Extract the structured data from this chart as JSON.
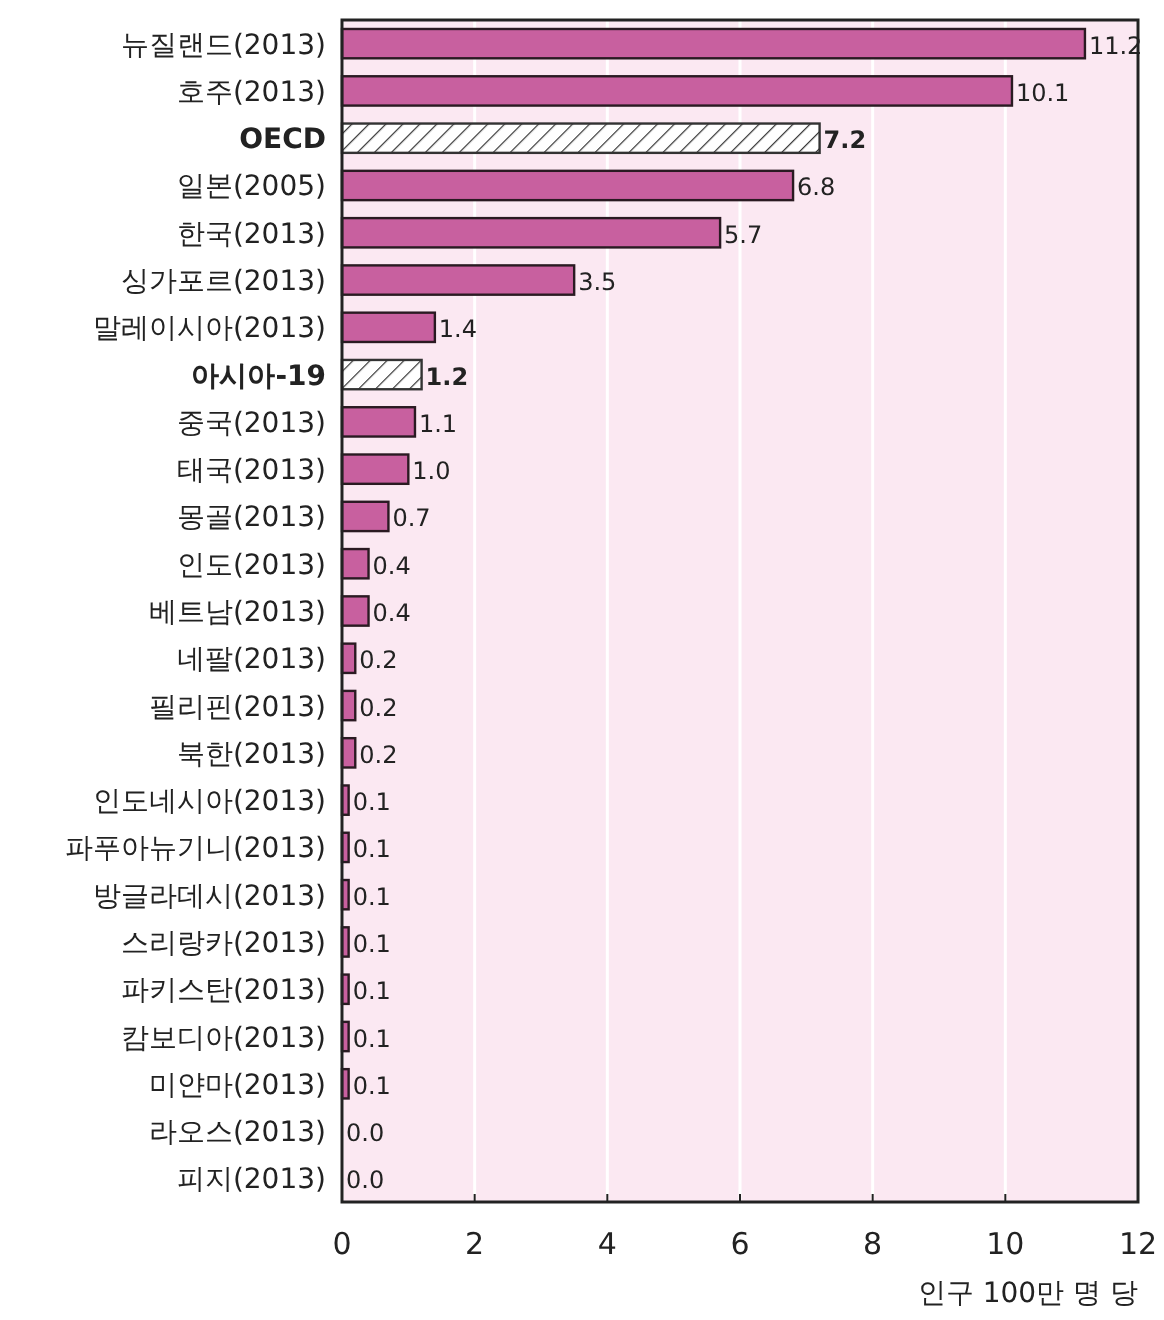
{
  "chart_data": {
    "type": "bar",
    "orientation": "horizontal",
    "xlabel": "인구 100만 명 당",
    "categories": [
      "뉴질랜드(2013)",
      "호주(2013)",
      "OECD",
      "일본(2005)",
      "한국(2013)",
      "싱가포르(2013)",
      "말레이시아(2013)",
      "아시아-19",
      "중국(2013)",
      "태국(2013)",
      "몽골(2013)",
      "인도(2013)",
      "베트남(2013)",
      "네팔(2013)",
      "필리핀(2013)",
      "북한(2013)",
      "인도네시아(2013)",
      "파푸아뉴기니(2013)",
      "방글라데시(2013)",
      "스리랑카(2013)",
      "파키스탄(2013)",
      "캄보디아(2013)",
      "미얀마(2013)",
      "라오스(2013)",
      "피지(2013)"
    ],
    "series": [
      {
        "color": "#c8609f",
        "values": [
          11.2,
          10.1,
          null,
          6.8,
          5.7,
          3.5,
          1.4,
          null,
          1.1,
          1.0,
          0.7,
          0.4,
          0.4,
          0.2,
          0.2,
          0.2,
          0.1,
          0.1,
          0.1,
          0.1,
          0.1,
          0.1,
          0.1,
          0.0,
          0.0
        ],
        "value_labels": [
          "11.2",
          "10.1",
          null,
          "6.8",
          "5.7",
          "3.5",
          "1.4",
          null,
          "1.1",
          "1.0",
          "0.7",
          "0.4",
          "0.4",
          "0.2",
          "0.2",
          "0.2",
          "0.1",
          "0.1",
          "0.1",
          "0.1",
          "0.1",
          "0.1",
          "0.1",
          "0.0",
          "0.0"
        ]
      },
      {
        "color": "#333333",
        "values": [
          null,
          null,
          7.2,
          null,
          null,
          null,
          null,
          1.2,
          null,
          null,
          null,
          null,
          null,
          null,
          null,
          null,
          null,
          null,
          null,
          null,
          null,
          null,
          null,
          null,
          null
        ],
        "value_labels": [
          null,
          null,
          "7.2",
          null,
          null,
          null,
          null,
          "1.2",
          null,
          null,
          null,
          null,
          null,
          null,
          null,
          null,
          null,
          null,
          null,
          null,
          null,
          null,
          null,
          null,
          null
        ]
      }
    ],
    "xlim": [
      0,
      12
    ],
    "xticks": [
      0,
      2,
      4,
      6,
      8,
      10,
      12
    ],
    "grid": "x"
  }
}
